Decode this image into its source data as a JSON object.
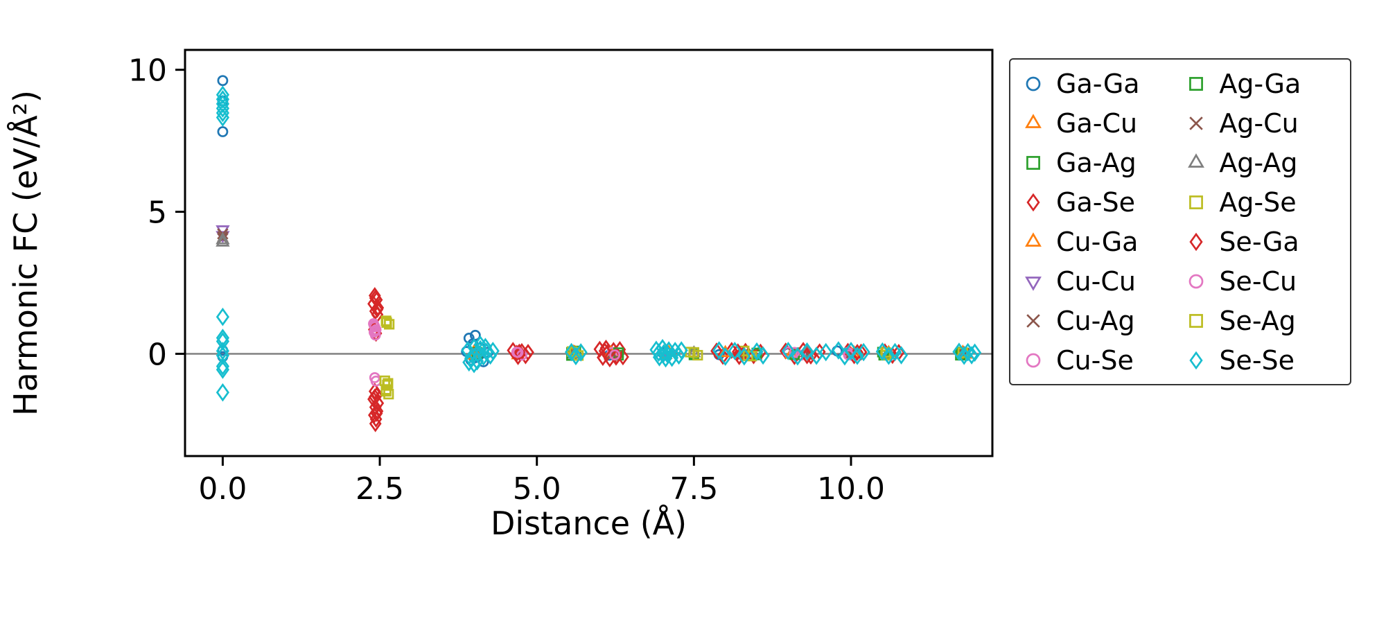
{
  "figure": {
    "ylabel": "Harmonic FC (eV/Å²)",
    "xlabel": "Distance (Å)",
    "background": "#ffffff",
    "frame_color": "#000000",
    "zero_line_color": "#808080"
  },
  "chart_data": {
    "type": "scatter",
    "title": "",
    "xlabel": "Distance (Å)",
    "ylabel": "Harmonic FC (eV/Å²)",
    "xlim": [
      -0.6,
      12.25
    ],
    "ylim": [
      -3.6,
      10.7
    ],
    "xticks": [
      0.0,
      2.5,
      5.0,
      7.5,
      10.0
    ],
    "xtick_labels": [
      "0.0",
      "2.5",
      "5.0",
      "7.5",
      "10.0"
    ],
    "yticks": [
      0,
      5,
      10
    ],
    "ytick_labels": [
      "0",
      "5",
      "10"
    ],
    "grid": false,
    "zero_line": {
      "y": 0,
      "color": "#808080"
    },
    "legend_position": "outside-right",
    "legend_columns": 2,
    "series": [
      {
        "name": "Ga-Ga",
        "marker": "circle",
        "color": "#1f77b4",
        "size": 8,
        "points": [
          [
            0,
            9.62
          ],
          [
            0,
            8.9
          ],
          [
            0,
            7.82
          ],
          [
            0,
            0.12
          ],
          [
            0,
            -0.1
          ],
          [
            3.92,
            0.55
          ],
          [
            4.02,
            0.65
          ],
          [
            3.98,
            0.35
          ],
          [
            4.1,
            0.2
          ],
          [
            3.88,
            0.08
          ],
          [
            4.0,
            -0.15
          ],
          [
            4.15,
            -0.28
          ],
          [
            3.95,
            -0.22
          ],
          [
            4.22,
            0.05
          ],
          [
            4.08,
            -0.05
          ],
          [
            5.62,
            0.05
          ],
          [
            6.15,
            -0.05
          ],
          [
            7.0,
            0.04
          ],
          [
            7.9,
            -0.03
          ],
          [
            9.0,
            0.03
          ],
          [
            9.78,
            0.1
          ],
          [
            10.6,
            -0.04
          ],
          [
            11.8,
            0.03
          ]
        ]
      },
      {
        "name": "Ga-Cu",
        "marker": "triangle-up",
        "color": "#ff7f0e",
        "size": 9,
        "points": [
          [
            4.0,
            0.06
          ],
          [
            4.7,
            -0.05
          ],
          [
            5.6,
            0.04
          ],
          [
            6.2,
            -0.03
          ],
          [
            7.1,
            0.04
          ],
          [
            8.3,
            -0.03
          ],
          [
            9.3,
            0.03
          ],
          [
            10.0,
            -0.02
          ],
          [
            10.6,
            0.03
          ],
          [
            11.82,
            -0.03
          ]
        ]
      },
      {
        "name": "Ga-Ag",
        "marker": "square",
        "color": "#2ca02c",
        "size": 8,
        "points": [
          [
            4.05,
            0.05
          ],
          [
            5.55,
            -0.06
          ],
          [
            5.62,
            0.1
          ],
          [
            6.3,
            -0.05
          ],
          [
            7.5,
            0.03
          ],
          [
            8.5,
            -0.04
          ],
          [
            9.1,
            0.04
          ],
          [
            10.5,
            0.06
          ],
          [
            11.76,
            0.06
          ]
        ]
      },
      {
        "name": "Ga-Se",
        "marker": "diamond",
        "color": "#d62728",
        "size": 10,
        "points": [
          [
            2.42,
            2.05
          ],
          [
            2.45,
            1.9
          ],
          [
            2.4,
            1.76
          ],
          [
            2.47,
            1.62
          ],
          [
            2.43,
            1.5
          ],
          [
            2.46,
            1.38
          ],
          [
            2.41,
            0.85
          ],
          [
            2.44,
            0.72
          ],
          [
            2.42,
            -1.32
          ],
          [
            2.45,
            -1.46
          ],
          [
            2.4,
            -1.6
          ],
          [
            2.47,
            -1.74
          ],
          [
            2.43,
            -1.88
          ],
          [
            2.46,
            -2.02
          ],
          [
            2.41,
            -2.16
          ],
          [
            2.44,
            -2.3
          ],
          [
            2.43,
            -2.46
          ],
          [
            4.62,
            0.12
          ],
          [
            4.7,
            -0.1
          ],
          [
            4.76,
            0.08
          ],
          [
            4.82,
            -0.07
          ],
          [
            4.68,
            0.02
          ],
          [
            4.86,
            0.05
          ],
          [
            6.0,
            0.16
          ],
          [
            6.05,
            -0.13
          ],
          [
            6.1,
            0.2
          ],
          [
            6.16,
            -0.18
          ],
          [
            6.22,
            0.12
          ],
          [
            6.27,
            -0.09
          ],
          [
            6.32,
            0.15
          ],
          [
            6.37,
            -0.11
          ],
          [
            6.12,
            0.03
          ],
          [
            6.24,
            -0.03
          ],
          [
            7.86,
            0.1
          ],
          [
            7.96,
            -0.09
          ],
          [
            8.1,
            0.12
          ],
          [
            8.22,
            -0.1
          ],
          [
            8.32,
            0.09
          ],
          [
            8.45,
            -0.07
          ],
          [
            8.56,
            0.06
          ],
          [
            8.96,
            0.1
          ],
          [
            9.1,
            -0.1
          ],
          [
            9.24,
            0.12
          ],
          [
            9.36,
            -0.08
          ],
          [
            9.5,
            0.07
          ],
          [
            9.95,
            0.09
          ],
          [
            10.05,
            -0.07
          ],
          [
            10.16,
            0.06
          ],
          [
            10.54,
            0.07
          ],
          [
            10.66,
            -0.06
          ],
          [
            10.76,
            0.05
          ]
        ]
      },
      {
        "name": "Cu-Ga",
        "marker": "triangle-up",
        "color": "#ff7f0e",
        "size": 9,
        "points": [
          [
            3.98,
            -0.06
          ],
          [
            5.58,
            0.05
          ],
          [
            6.18,
            0.03
          ],
          [
            7.05,
            -0.04
          ],
          [
            8.0,
            0.03
          ],
          [
            9.05,
            -0.03
          ],
          [
            10.05,
            0.02
          ],
          [
            11.78,
            0.04
          ]
        ]
      },
      {
        "name": "Cu-Cu",
        "marker": "triangle-down",
        "color": "#9467bd",
        "size": 9,
        "points": [
          [
            0,
            4.38
          ],
          [
            0,
            4.18
          ],
          [
            4.1,
            0.06
          ],
          [
            7.1,
            -0.04
          ],
          [
            10.0,
            0.03
          ]
        ]
      },
      {
        "name": "Cu-Ag",
        "marker": "x",
        "color": "#8c564b",
        "size": 9,
        "points": [
          [
            0,
            4.22
          ],
          [
            0,
            4.06
          ],
          [
            5.6,
            0.0
          ],
          [
            8.3,
            0.03
          ],
          [
            9.3,
            -0.02
          ],
          [
            11.8,
            0.02
          ]
        ]
      },
      {
        "name": "Cu-Se",
        "marker": "circle",
        "color": "#e377c2",
        "size": 8,
        "points": [
          [
            2.4,
            1.06
          ],
          [
            2.42,
            0.95
          ],
          [
            2.44,
            0.85
          ],
          [
            2.41,
            0.76
          ],
          [
            2.43,
            0.66
          ],
          [
            2.42,
            -0.84
          ],
          [
            2.44,
            -0.96
          ],
          [
            4.68,
            0.06
          ],
          [
            4.76,
            -0.05
          ],
          [
            6.2,
            0.05
          ],
          [
            9.0,
            0.06
          ],
          [
            9.2,
            -0.05
          ],
          [
            9.95,
            0.05
          ]
        ]
      },
      {
        "name": "Ag-Ga",
        "marker": "square",
        "color": "#2ca02c",
        "size": 8,
        "points": [
          [
            4.05,
            -0.04
          ],
          [
            5.55,
            0.05
          ],
          [
            6.3,
            0.04
          ],
          [
            7.5,
            -0.04
          ],
          [
            8.5,
            0.03
          ],
          [
            9.1,
            -0.03
          ],
          [
            10.52,
            -0.05
          ],
          [
            11.74,
            -0.05
          ]
        ]
      },
      {
        "name": "Ag-Cu",
        "marker": "x",
        "color": "#8c564b",
        "size": 9,
        "points": [
          [
            0,
            4.12
          ],
          [
            6.2,
            0.02
          ],
          [
            8.3,
            -0.02
          ],
          [
            10.0,
            0.02
          ],
          [
            11.8,
            -0.02
          ]
        ]
      },
      {
        "name": "Ag-Ag",
        "marker": "triangle-up",
        "color": "#7f7f7f",
        "size": 9,
        "points": [
          [
            0,
            4.0
          ],
          [
            0,
            3.92
          ],
          [
            5.6,
            -0.03
          ],
          [
            7.5,
            0.02
          ],
          [
            9.3,
            0.03
          ],
          [
            11.8,
            0.0
          ]
        ]
      },
      {
        "name": "Ag-Se",
        "marker": "square",
        "color": "#bcbd22",
        "size": 8,
        "points": [
          [
            2.6,
            1.16
          ],
          [
            2.65,
            1.04
          ],
          [
            2.58,
            -0.95
          ],
          [
            2.62,
            -1.1
          ],
          [
            2.6,
            -1.26
          ],
          [
            2.64,
            -1.42
          ],
          [
            5.56,
            0.08
          ],
          [
            5.66,
            -0.06
          ],
          [
            7.44,
            0.06
          ],
          [
            7.56,
            -0.05
          ],
          [
            8.3,
            0.1
          ],
          [
            8.42,
            -0.08
          ],
          [
            10.55,
            0.05
          ]
        ]
      },
      {
        "name": "Se-Ga",
        "marker": "diamond",
        "color": "#d62728",
        "size": 10,
        "points": [
          [
            2.43,
            1.96
          ],
          [
            2.46,
            1.56
          ],
          [
            2.42,
            -1.52
          ],
          [
            2.45,
            -2.1
          ],
          [
            4.72,
            0.06
          ],
          [
            6.08,
            0.1
          ],
          [
            6.26,
            -0.12
          ],
          [
            8.2,
            0.07
          ],
          [
            9.3,
            -0.07
          ],
          [
            10.1,
            0.05
          ]
        ]
      },
      {
        "name": "Se-Cu",
        "marker": "circle",
        "color": "#e377c2",
        "size": 8,
        "points": [
          [
            2.41,
            1.0
          ],
          [
            2.43,
            0.8
          ],
          [
            4.7,
            0.05
          ],
          [
            6.24,
            -0.04
          ],
          [
            9.1,
            0.05
          ],
          [
            9.96,
            -0.04
          ]
        ]
      },
      {
        "name": "Se-Ag",
        "marker": "square",
        "color": "#bcbd22",
        "size": 8,
        "points": [
          [
            2.61,
            1.1
          ],
          [
            2.63,
            -1.04
          ],
          [
            2.6,
            -1.32
          ],
          [
            5.6,
            0.06
          ],
          [
            7.5,
            0.05
          ],
          [
            8.36,
            -0.07
          ],
          [
            10.56,
            -0.04
          ],
          [
            11.78,
            0.04
          ]
        ]
      },
      {
        "name": "Se-Se",
        "marker": "diamond",
        "color": "#17becf",
        "size": 11,
        "points": [
          [
            0,
            9.12
          ],
          [
            0,
            8.96
          ],
          [
            0,
            8.8
          ],
          [
            0,
            8.64
          ],
          [
            0,
            8.48
          ],
          [
            0,
            8.32
          ],
          [
            0,
            1.3
          ],
          [
            0,
            0.56
          ],
          [
            0,
            0.44
          ],
          [
            0,
            0.1
          ],
          [
            0,
            -0.06
          ],
          [
            0,
            -0.44
          ],
          [
            0,
            -0.56
          ],
          [
            0,
            -1.36
          ],
          [
            3.9,
            0.12
          ],
          [
            3.95,
            -0.16
          ],
          [
            4.0,
            0.22
          ],
          [
            4.05,
            -0.26
          ],
          [
            4.1,
            0.16
          ],
          [
            4.15,
            -0.1
          ],
          [
            4.2,
            0.06
          ],
          [
            4.0,
            -0.36
          ],
          [
            4.1,
            0.32
          ],
          [
            4.26,
            -0.06
          ],
          [
            3.92,
            -0.3
          ],
          [
            4.3,
            0.1
          ],
          [
            4.18,
            0.24
          ],
          [
            4.06,
            0.02
          ],
          [
            5.55,
            0.06
          ],
          [
            5.62,
            -0.08
          ],
          [
            5.7,
            0.05
          ],
          [
            6.9,
            0.14
          ],
          [
            6.95,
            -0.12
          ],
          [
            7.0,
            0.2
          ],
          [
            7.05,
            -0.16
          ],
          [
            7.1,
            0.12
          ],
          [
            7.15,
            -0.14
          ],
          [
            7.2,
            0.1
          ],
          [
            7.26,
            -0.06
          ],
          [
            7.02,
            0.02
          ],
          [
            7.3,
            0.12
          ],
          [
            7.08,
            -0.02
          ],
          [
            6.94,
            0.04
          ],
          [
            7.9,
            0.12
          ],
          [
            8.0,
            -0.1
          ],
          [
            8.15,
            0.1
          ],
          [
            8.3,
            -0.09
          ],
          [
            8.5,
            0.08
          ],
          [
            8.6,
            -0.06
          ],
          [
            9.0,
            0.1
          ],
          [
            9.15,
            -0.09
          ],
          [
            9.3,
            0.08
          ],
          [
            9.45,
            -0.07
          ],
          [
            9.6,
            0.06
          ],
          [
            9.8,
            0.12
          ],
          [
            9.9,
            -0.09
          ],
          [
            10.0,
            0.1
          ],
          [
            10.1,
            -0.07
          ],
          [
            10.2,
            0.06
          ],
          [
            10.5,
            0.08
          ],
          [
            10.6,
            -0.07
          ],
          [
            10.7,
            0.06
          ],
          [
            10.8,
            -0.05
          ],
          [
            11.72,
            0.07
          ],
          [
            11.8,
            -0.07
          ],
          [
            11.86,
            0.06
          ],
          [
            11.92,
            -0.05
          ],
          [
            11.97,
            0.04
          ]
        ]
      }
    ]
  }
}
